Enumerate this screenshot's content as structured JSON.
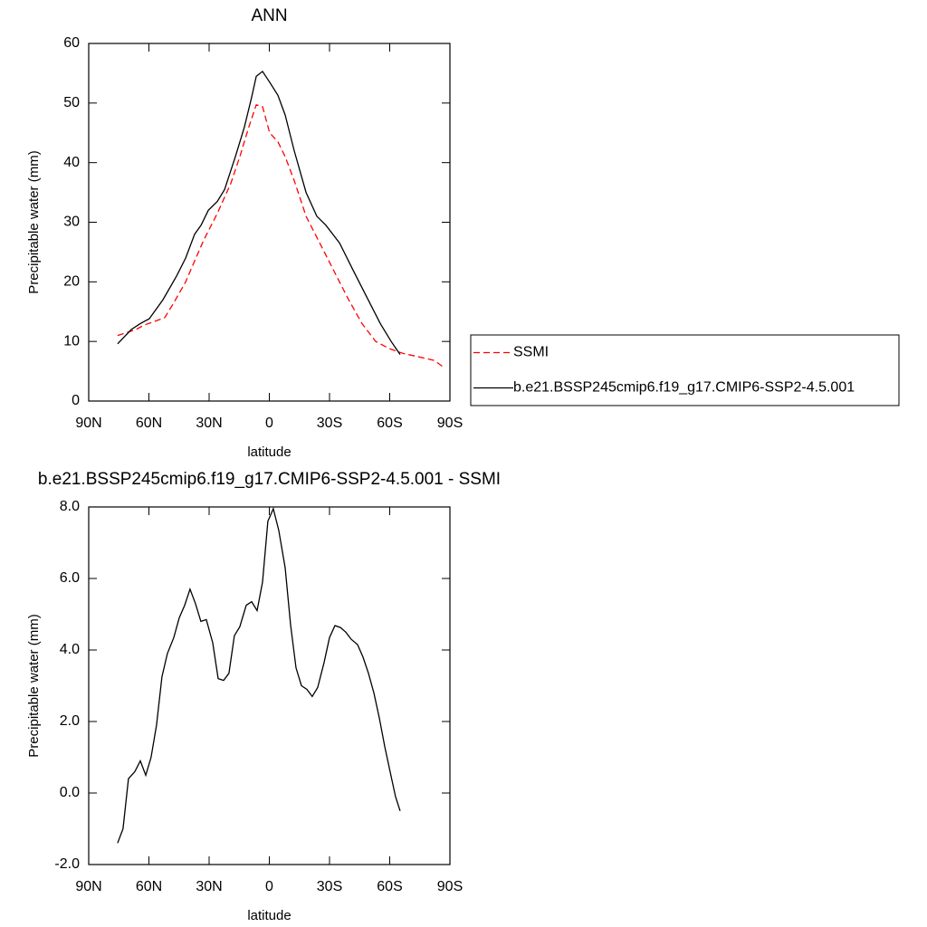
{
  "chart_data": [
    {
      "type": "line",
      "title": "ANN",
      "xlabel": "latitude",
      "ylabel": "Precipitable water (mm)",
      "xlim": [
        90,
        -90
      ],
      "xticks": [
        {
          "value": 90,
          "label": "90N"
        },
        {
          "value": 60,
          "label": "60N"
        },
        {
          "value": 30,
          "label": "30N"
        },
        0,
        {
          "value": -30,
          "label": "30S"
        },
        {
          "value": -60,
          "label": "60S"
        },
        {
          "value": -90,
          "label": "90S"
        }
      ],
      "ylim": [
        0,
        60
      ],
      "yticks": [
        0,
        10,
        20,
        30,
        40,
        50,
        60
      ],
      "legend": "right",
      "series": [
        {
          "name": "SSMI",
          "color": "#ff0000",
          "style": "dashed",
          "x": [
            75.6,
            71,
            66.5,
            62,
            57.5,
            52.1,
            47.6,
            41.7,
            37.2,
            32.7,
            25.9,
            19.2,
            14.7,
            10.2,
            6.5,
            3.4,
            -0.2,
            -4.3,
            -7.9,
            -12.4,
            -18.3,
            -25.9,
            -32.7,
            -39.5,
            -46.2,
            -53,
            -59.8,
            -66.5,
            -73.3,
            -82.3,
            -86.3
          ],
          "values": [
            11,
            11.5,
            12,
            12.8,
            13.3,
            14,
            16.5,
            20,
            23.5,
            27,
            31.5,
            36.5,
            41,
            46,
            49.7,
            49.4,
            45,
            43.5,
            41,
            37,
            31,
            26,
            21.5,
            17,
            13,
            10,
            8.8,
            8,
            7.5,
            6.8,
            5.8
          ]
        },
        {
          "name": "b.e21.BSSP245cmip6.f19_g17.CMIP6-SSP2-4.5.001",
          "color": "#000000",
          "style": "solid",
          "x": [
            75.6,
            68.8,
            64.3,
            59.8,
            53,
            46.2,
            41.7,
            37.2,
            34,
            30.4,
            25.9,
            22.3,
            16.9,
            12.4,
            8.8,
            6.5,
            3.4,
            -0.2,
            -4.3,
            -7.9,
            -12.4,
            -18.3,
            -23.7,
            -28.2,
            -35,
            -41.7,
            -48.5,
            -55.3,
            -60.7,
            -65.2
          ],
          "values": [
            9.6,
            12,
            13,
            13.8,
            17,
            21,
            24,
            28,
            29.5,
            32,
            33.5,
            35.5,
            41,
            46,
            51,
            54.5,
            55.3,
            53.5,
            51.3,
            48,
            42,
            35,
            31,
            29.5,
            26.5,
            22,
            17.5,
            13,
            10,
            7.8
          ]
        }
      ]
    },
    {
      "type": "line",
      "title": "b.e21.BSSP245cmip6.f19_g17.CMIP6-SSP2-4.5.001 - SSMI",
      "xlabel": "latitude",
      "ylabel": "Precipitable water (mm)",
      "xlim": [
        90,
        -90
      ],
      "xticks": [
        {
          "value": 90,
          "label": "90N"
        },
        {
          "value": 60,
          "label": "60N"
        },
        {
          "value": 30,
          "label": "30N"
        },
        0,
        {
          "value": -30,
          "label": "30S"
        },
        {
          "value": -60,
          "label": "60S"
        },
        {
          "value": -90,
          "label": "90S"
        }
      ],
      "ylim": [
        -2,
        8
      ],
      "yticks": [
        {
          "value": -2,
          "label": "-2.0"
        },
        {
          "value": 0,
          "label": "0.0"
        },
        {
          "value": 2,
          "label": "2.0"
        },
        {
          "value": 4,
          "label": "4.0"
        },
        {
          "value": 6,
          "label": "6.0"
        },
        {
          "value": 8,
          "label": "8.0"
        }
      ],
      "series": [
        {
          "color": "#000000",
          "style": "solid",
          "x": [
            75.6,
            72.9,
            70.2,
            67,
            64.3,
            61.6,
            58.9,
            56.2,
            53.5,
            50.8,
            47.6,
            44.9,
            42.2,
            39.5,
            36.8,
            34.1,
            31.4,
            28.2,
            25.5,
            22.8,
            20.1,
            17.4,
            14.7,
            11.5,
            8.8,
            6.1,
            3.4,
            0.7,
            -2,
            -4.7,
            -7.9,
            -10.6,
            -13.3,
            -16,
            -18.7,
            -21.4,
            -24.1,
            -27.3,
            -30,
            -32.7,
            -35.4,
            -38.1,
            -40.8,
            -44,
            -46.7,
            -49.4,
            -52.1,
            -54.8,
            -57.5,
            -60.2,
            -62.9,
            -65.2
          ],
          "values": [
            -1.4,
            -1,
            0.4,
            0.6,
            0.9,
            0.5,
            1,
            1.9,
            3.25,
            3.9,
            4.35,
            4.9,
            5.25,
            5.7,
            5.3,
            4.8,
            4.85,
            4.2,
            3.2,
            3.15,
            3.35,
            4.4,
            4.65,
            5.25,
            5.35,
            5.1,
            5.9,
            7.6,
            7.95,
            7.35,
            6.3,
            4.7,
            3.5,
            3,
            2.9,
            2.7,
            2.95,
            3.65,
            4.35,
            4.68,
            4.63,
            4.5,
            4.3,
            4.15,
            3.8,
            3.35,
            2.8,
            2.1,
            1.3,
            0.6,
            -0.1,
            -0.5
          ]
        }
      ]
    }
  ]
}
